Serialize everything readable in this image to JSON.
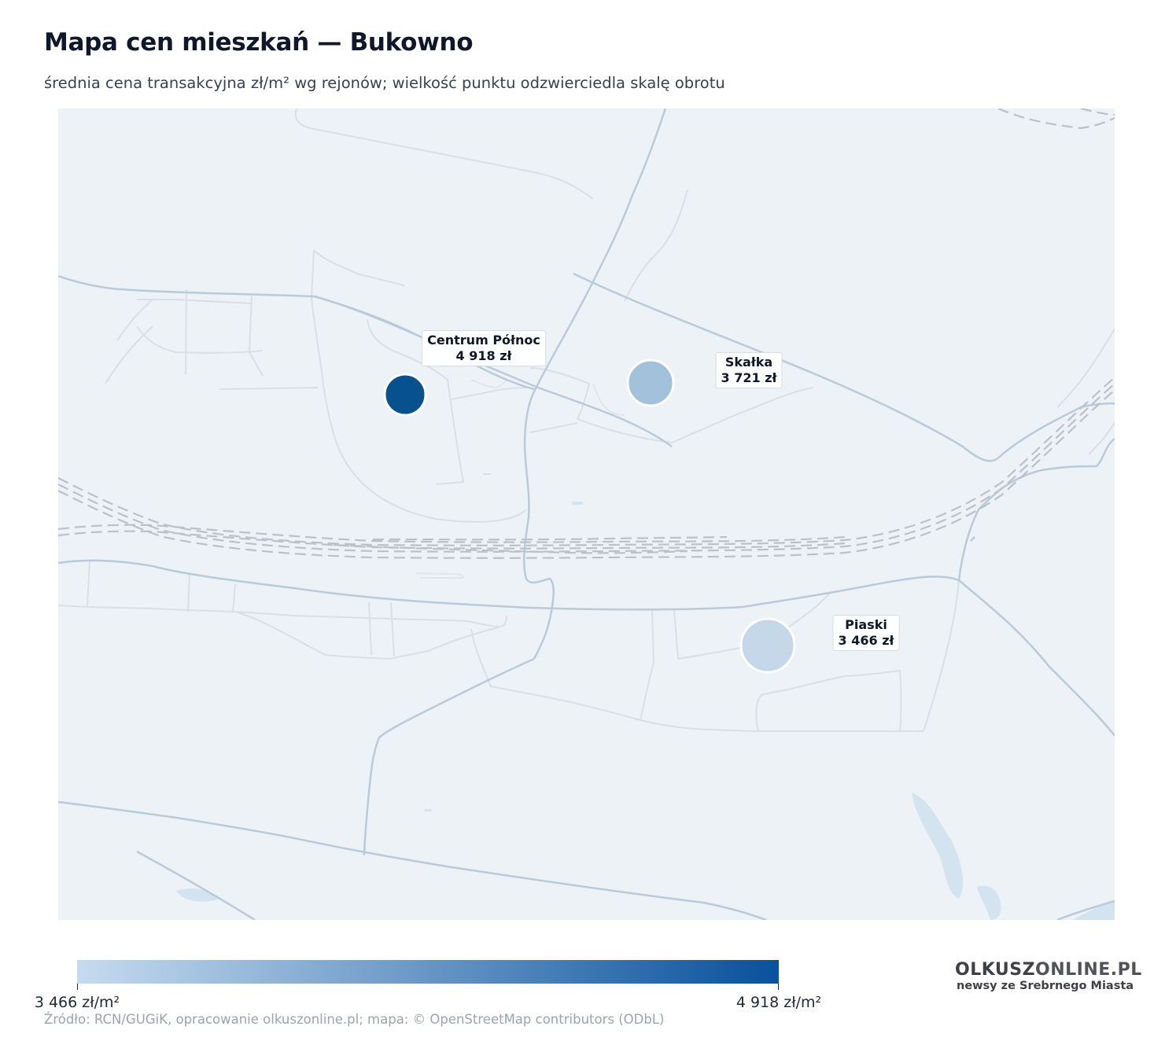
{
  "header": {
    "title": "Mapa cen mieszkań — Bukowno",
    "subtitle": "średnia cena transakcyjna zł/m² wg rejonów; wielkość punktu odzwierciedla skalę obrotu"
  },
  "map": {
    "background_color": "#edf2f7",
    "districts": [
      {
        "name": "Centrum Północ",
        "price_label": "4 918 zł",
        "price": 4918,
        "color": "#08518f"
      },
      {
        "name": "Skałka",
        "price_label": "3 721 zł",
        "price": 3721,
        "color": "#a3c1da"
      },
      {
        "name": "Piaski",
        "price_label": "3 466 zł",
        "price": 3466,
        "color": "#c4d8ea"
      }
    ]
  },
  "legend": {
    "min_label": "3 466 zł/m²",
    "max_label": "4 918 zł/m²",
    "min_value": 3466,
    "max_value": 4918,
    "color_start": "#c6dbef",
    "color_end": "#08519c"
  },
  "footer": {
    "source": "Źródło: RCN/GUGiK, opracowanie olkuszonline.pl; mapa: © OpenStreetMap contributors (ODbL)"
  },
  "logo": {
    "main": "OLKUSZ",
    "domain": "ONLINE.PL",
    "tagline": "newsy ze Srebrnego Miasta"
  }
}
